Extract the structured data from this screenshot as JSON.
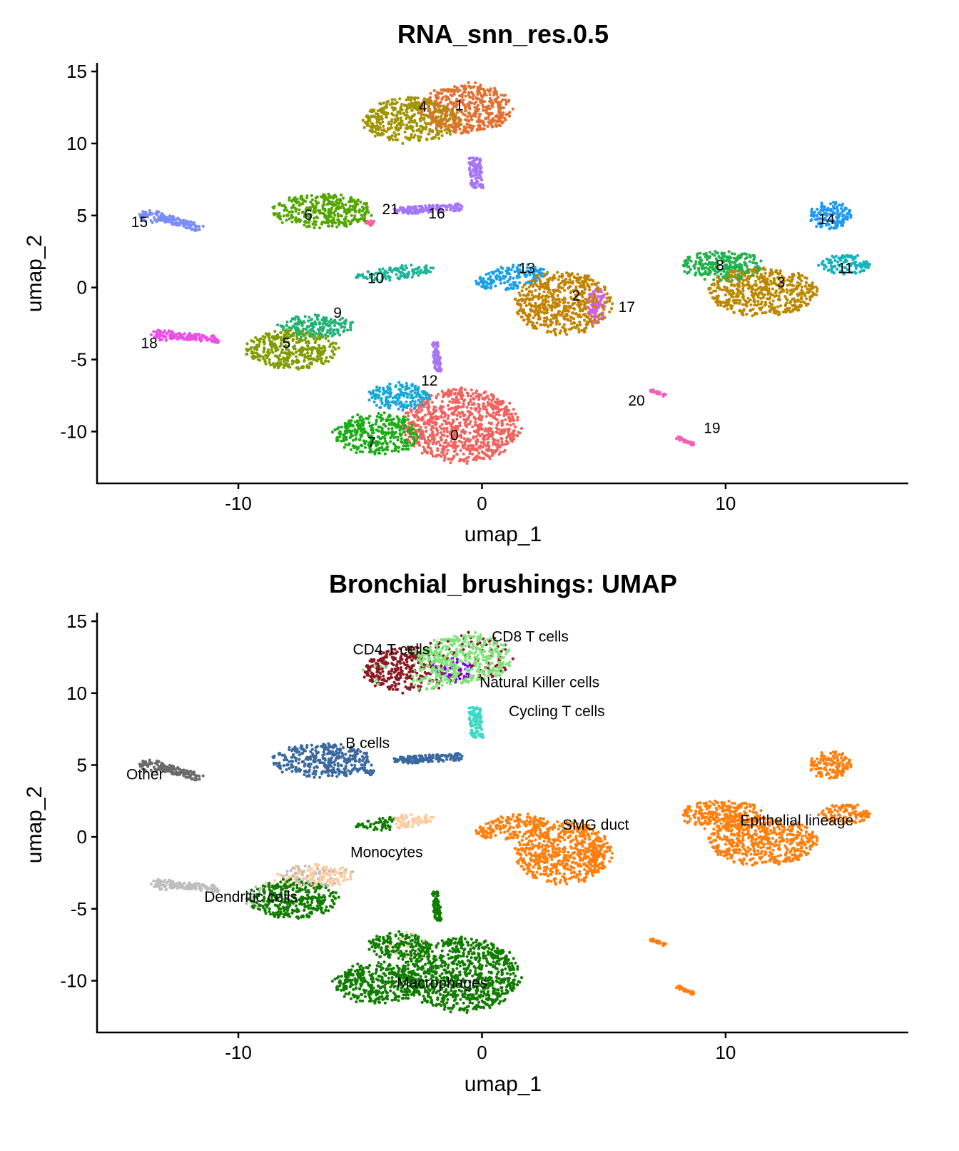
{
  "chart_data": [
    {
      "type": "scatter",
      "title": "RNA_snn_res.0.5",
      "xlabel": "umap_1",
      "ylabel": "umap_2",
      "xlim": [
        -15.8,
        17.5
      ],
      "ylim": [
        -13.6,
        15.6
      ],
      "xticks": [
        -10,
        0,
        10
      ],
      "yticks": [
        15,
        10,
        5,
        0,
        -5,
        -10
      ],
      "grid": false,
      "legend": "none",
      "clusters": [
        {
          "id": "0",
          "color": "#F0635E",
          "label": [
            -1.3,
            -10.6
          ],
          "parts": [
            {
              "cx": -0.8,
              "cy": -9.6,
              "rx": 2.4,
              "ry": 2.6
            }
          ]
        },
        {
          "id": "1",
          "color": "#E3702F",
          "label": [
            -1.1,
            12.3
          ],
          "parts": [
            {
              "cx": -0.6,
              "cy": 12.4,
              "rx": 1.9,
              "ry": 1.8
            }
          ]
        },
        {
          "id": "2",
          "color": "#C38300",
          "label": [
            3.7,
            -0.9
          ],
          "parts": [
            {
              "cx": 3.3,
              "cy": -1.1,
              "rx": 2.0,
              "ry": 2.2
            }
          ]
        },
        {
          "id": "3",
          "color": "#BB8900",
          "label": [
            12.1,
            0.0
          ],
          "parts": [
            {
              "cx": 11.5,
              "cy": -0.3,
              "rx": 2.3,
              "ry": 1.7
            }
          ]
        },
        {
          "id": "4",
          "color": "#A19400",
          "label": [
            -2.6,
            12.2
          ],
          "parts": [
            {
              "cx": -2.9,
              "cy": 11.6,
              "rx": 2.0,
              "ry": 1.6
            }
          ]
        },
        {
          "id": "5",
          "color": "#7F9D00",
          "label": [
            -8.2,
            -4.2
          ],
          "parts": [
            {
              "cx": -7.8,
              "cy": -4.3,
              "rx": 1.9,
              "ry": 1.4
            }
          ]
        },
        {
          "id": "6",
          "color": "#53A600",
          "label": [
            -7.3,
            4.7
          ],
          "parts": [
            {
              "cx": -6.6,
              "cy": 5.3,
              "rx": 2.1,
              "ry": 1.2
            }
          ]
        },
        {
          "id": "7",
          "color": "#1BAD17",
          "label": [
            -4.7,
            -11.1
          ],
          "parts": [
            {
              "cx": -4.3,
              "cy": -10.2,
              "rx": 1.8,
              "ry": 1.5
            }
          ]
        },
        {
          "id": "8",
          "color": "#23B14E",
          "label": [
            9.6,
            1.2
          ],
          "parts": [
            {
              "cx": 9.9,
              "cy": 1.5,
              "rx": 1.7,
              "ry": 1.1
            }
          ]
        },
        {
          "id": "9",
          "color": "#22B276",
          "label": [
            -6.1,
            -2.1
          ],
          "parts": [
            {
              "cx": -6.8,
              "cy": -2.7,
              "rx": 1.6,
              "ry": 0.8
            }
          ]
        },
        {
          "id": "10",
          "color": "#1DB49A",
          "label": [
            -4.7,
            0.3
          ],
          "parts": [
            {
              "cx": -3.6,
              "cy": 1.0,
              "rx": 1.8,
              "ry": 0.45,
              "rot": 12
            }
          ]
        },
        {
          "id": "11",
          "color": "#14B3BD",
          "label": [
            14.6,
            1.0
          ],
          "parts": [
            {
              "cx": 14.9,
              "cy": 1.6,
              "rx": 1.1,
              "ry": 0.7
            }
          ]
        },
        {
          "id": "12",
          "color": "#18A8D6",
          "label": [
            -2.5,
            -6.8
          ],
          "parts": [
            {
              "cx": -3.4,
              "cy": -7.6,
              "rx": 1.3,
              "ry": 1.0
            }
          ]
        },
        {
          "id": "13",
          "color": "#1AA0E8",
          "label": [
            1.5,
            1.0
          ],
          "parts": [
            {
              "cx": 1.2,
              "cy": 0.7,
              "rx": 1.5,
              "ry": 0.8,
              "rot": 20
            }
          ]
        },
        {
          "id": "14",
          "color": "#1C98F5",
          "label": [
            13.8,
            4.4
          ],
          "parts": [
            {
              "cx": 14.3,
              "cy": 5.0,
              "rx": 0.9,
              "ry": 1.0
            }
          ]
        },
        {
          "id": "15",
          "color": "#7A8CF8",
          "label": [
            -14.4,
            4.2
          ],
          "parts": [
            {
              "cx": -13.6,
              "cy": 4.9,
              "rx": 0.6,
              "ry": 0.45
            },
            {
              "x1": -13.2,
              "y1": 4.9,
              "x2": -11.5,
              "y2": 4.1,
              "w": 0.25
            }
          ]
        },
        {
          "id": "16",
          "color": "#A676F6",
          "label": [
            -2.2,
            4.8
          ],
          "parts": [
            {
              "x1": -3.6,
              "y1": 5.3,
              "x2": -0.8,
              "y2": 5.6,
              "w": 0.25
            },
            {
              "x1": -0.3,
              "y1": 9.0,
              "x2": -0.2,
              "y2": 6.9,
              "w": 0.25
            },
            {
              "x1": -1.9,
              "y1": -3.8,
              "x2": -1.8,
              "y2": -5.9,
              "w": 0.15
            }
          ]
        },
        {
          "id": "17",
          "color": "#D35FF2",
          "label": [
            5.6,
            -1.7
          ],
          "parts": [
            {
              "cx": 4.7,
              "cy": -1.3,
              "rx": 0.4,
              "ry": 1.3
            }
          ]
        },
        {
          "id": "18",
          "color": "#EC4FE6",
          "label": [
            -14.0,
            -4.2
          ],
          "parts": [
            {
              "cx": -13.1,
              "cy": -3.3,
              "rx": 0.5,
              "ry": 0.4
            },
            {
              "x1": -12.8,
              "y1": -3.3,
              "x2": -10.8,
              "y2": -3.6,
              "w": 0.25
            }
          ]
        },
        {
          "id": "19",
          "color": "#F65FB8",
          "label": [
            9.1,
            -10.1
          ],
          "parts": [
            {
              "x1": 8.0,
              "y1": -10.4,
              "x2": 8.7,
              "y2": -10.9,
              "w": 0.1
            }
          ]
        },
        {
          "id": "20",
          "color": "#F65FB8",
          "label": [
            6.0,
            -8.2
          ],
          "parts": [
            {
              "x1": 6.9,
              "y1": -7.1,
              "x2": 7.5,
              "y2": -7.5,
              "w": 0.08
            }
          ]
        },
        {
          "id": "21",
          "color": "#FA5D8F",
          "label": [
            -4.1,
            5.1
          ],
          "parts": [
            {
              "cx": -4.6,
              "cy": 4.5,
              "rx": 0.2,
              "ry": 0.2
            }
          ]
        }
      ]
    },
    {
      "type": "scatter",
      "title": "Bronchial_brushings: UMAP",
      "xlabel": "umap_1",
      "ylabel": "umap_2",
      "xlim": [
        -15.8,
        17.5
      ],
      "ylim": [
        -13.6,
        15.6
      ],
      "xticks": [
        -10,
        0,
        10
      ],
      "yticks": [
        15,
        10,
        5,
        0,
        -5,
        -10
      ],
      "grid": false,
      "legend": "none",
      "cell_types": [
        {
          "name": "CD4 T cells",
          "color": "#8B1A22",
          "label": [
            -5.3,
            12.7
          ]
        },
        {
          "name": "CD8 T cells",
          "color": "#80E47B",
          "label": [
            0.4,
            13.6
          ]
        },
        {
          "name": "Natural Killer cells",
          "color": "#7800DF",
          "label": [
            -0.1,
            10.4
          ]
        },
        {
          "name": "Cycling T cells",
          "color": "#3FDAC6",
          "label": [
            1.1,
            8.4
          ]
        },
        {
          "name": "B cells",
          "color": "#3A699F",
          "label": [
            -5.6,
            6.2
          ]
        },
        {
          "name": "Other",
          "color": "#6B6B6B",
          "label": [
            -14.6,
            4.0
          ]
        },
        {
          "name": "Monocytes",
          "color": "#FDCB9B",
          "label": [
            -5.4,
            -1.4
          ]
        },
        {
          "name": "Dendritic cells",
          "color": "#BEBEBE",
          "label": [
            -11.4,
            -4.5
          ]
        },
        {
          "name": "SMG duct",
          "color": "#FF7F0E",
          "label": [
            3.3,
            0.5
          ]
        },
        {
          "name": "Epithelial lineage",
          "color": "#FF7F0E",
          "label": [
            10.6,
            0.8
          ]
        },
        {
          "name": "Macrophages",
          "color": "#117D00",
          "label": [
            -3.5,
            -10.5
          ]
        }
      ],
      "cluster_assignment": {
        "0": [
          "Macrophages"
        ],
        "7": [
          "Macrophages"
        ],
        "12": [
          "Macrophages",
          "Monocytes"
        ],
        "1": [
          "CD8 T cells",
          "CD4 T cells",
          "Natural Killer cells"
        ],
        "4": [
          "CD4 T cells",
          "CD8 T cells"
        ],
        "16": [
          "B cells",
          "Cycling T cells"
        ],
        "6": [
          "B cells"
        ],
        "21": [
          "B cells"
        ],
        "15": [
          "Other"
        ],
        "10": [
          "Monocytes",
          "Macrophages"
        ],
        "9": [
          "Monocytes",
          "Dendritic cells"
        ],
        "5": [
          "Macrophages",
          "Monocytes"
        ],
        "18": [
          "Dendritic cells"
        ],
        "2": [
          "SMG duct"
        ],
        "13": [
          "SMG duct"
        ],
        "17": [
          "SMG duct"
        ],
        "3": [
          "Epithelial lineage"
        ],
        "8": [
          "Epithelial lineage"
        ],
        "11": [
          "Epithelial lineage"
        ],
        "14": [
          "Epithelial lineage"
        ],
        "19": [
          "Epithelial lineage"
        ],
        "20": [
          "Epithelial lineage"
        ]
      }
    }
  ]
}
